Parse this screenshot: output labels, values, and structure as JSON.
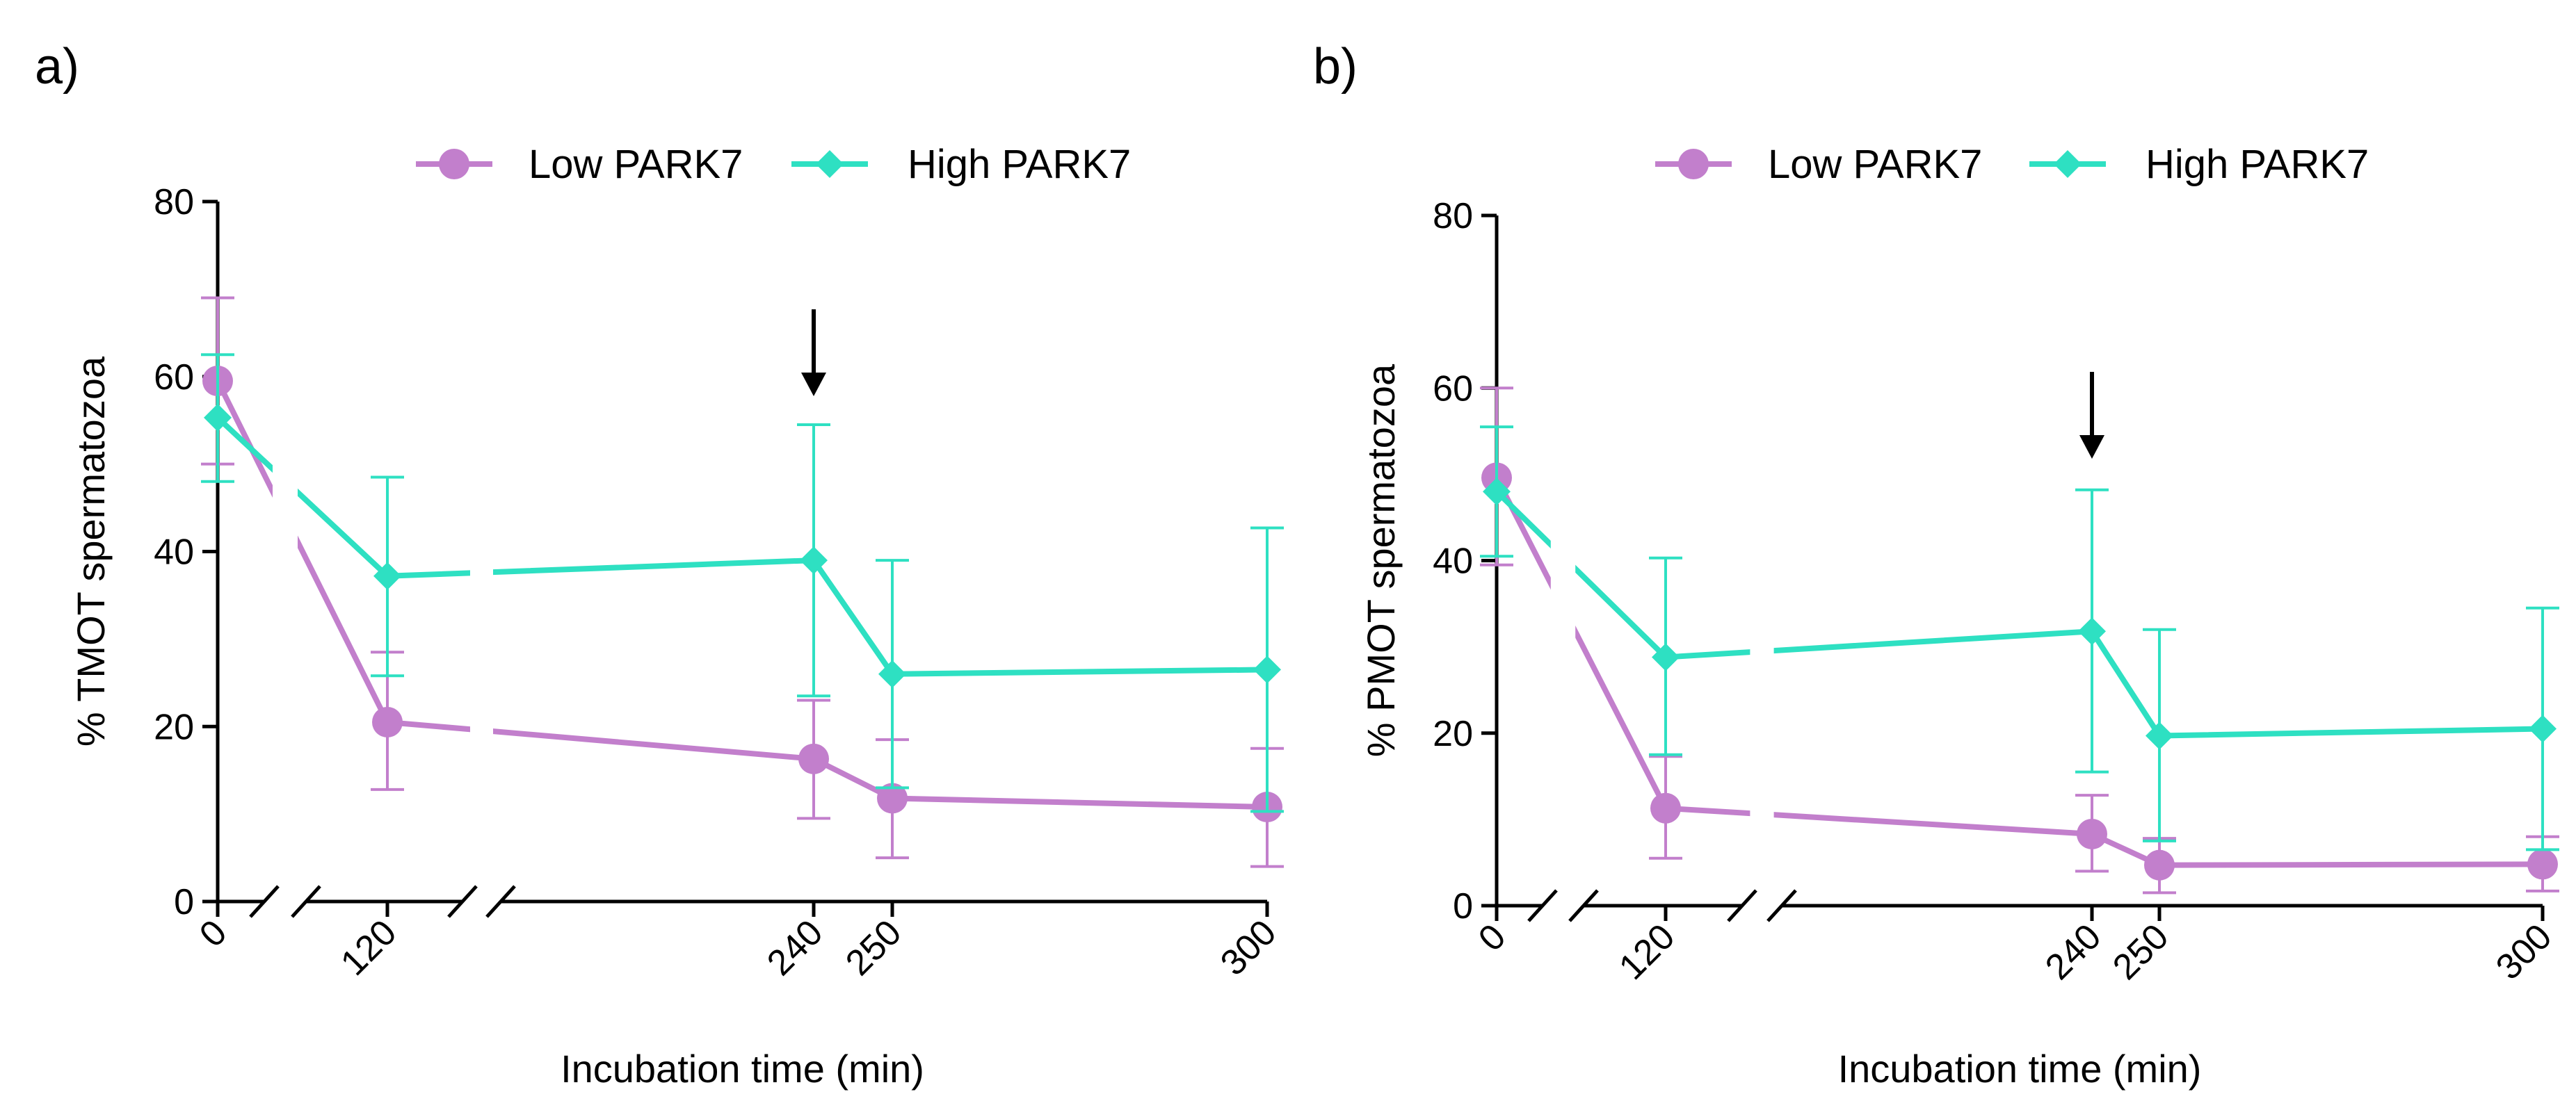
{
  "figure": {
    "colors": {
      "low": "#c27fcc",
      "high": "#2ee0c2",
      "axis": "#000000"
    }
  },
  "chart_data": [
    {
      "type": "line",
      "panel_label": "a)",
      "title": "",
      "xlabel": "Incubation time (min)",
      "ylabel": "%  TMOT spermatozoa",
      "ylim": [
        0,
        80
      ],
      "yticks": [
        0,
        20,
        40,
        60,
        80
      ],
      "xticks": [
        0,
        120,
        240,
        250,
        300
      ],
      "grid": false,
      "legend_position": "top-center",
      "broken_x_axis": true,
      "annotation": {
        "type": "arrow",
        "x": 240,
        "symbol": "↓"
      },
      "series": [
        {
          "name": "Low PARK7",
          "marker": "circle",
          "color": "#c27fcc",
          "points": [
            {
              "x": 0,
              "y": 59.5,
              "lo": 50.0,
              "hi": 69.0
            },
            {
              "x": 120,
              "y": 20.5,
              "lo": 12.8,
              "hi": 28.5
            },
            {
              "x": 240,
              "y": 16.3,
              "lo": 9.5,
              "hi": 23.0
            },
            {
              "x": 250,
              "y": 11.8,
              "lo": 5.0,
              "hi": 18.5
            },
            {
              "x": 300,
              "y": 10.8,
              "lo": 4.0,
              "hi": 17.5
            }
          ]
        },
        {
          "name": "High PARK7",
          "marker": "diamond",
          "color": "#2ee0c2",
          "points": [
            {
              "x": 0,
              "y": 55.3,
              "lo": 48.0,
              "hi": 62.5
            },
            {
              "x": 120,
              "y": 37.2,
              "lo": 25.8,
              "hi": 48.5
            },
            {
              "x": 240,
              "y": 39.0,
              "lo": 23.5,
              "hi": 54.5
            },
            {
              "x": 250,
              "y": 26.0,
              "lo": 13.0,
              "hi": 39.0
            },
            {
              "x": 300,
              "y": 26.5,
              "lo": 10.3,
              "hi": 42.7
            }
          ]
        }
      ]
    },
    {
      "type": "line",
      "panel_label": "b)",
      "title": "",
      "xlabel": "Incubation time (min)",
      "ylabel": "% PMOT spermatozoa",
      "ylim": [
        0,
        80
      ],
      "yticks": [
        0,
        20,
        40,
        60,
        80
      ],
      "xticks": [
        0,
        120,
        240,
        250,
        300
      ],
      "grid": false,
      "legend_position": "top-center",
      "broken_x_axis": true,
      "annotation": {
        "type": "arrow",
        "x": 240,
        "symbol": "↓"
      },
      "series": [
        {
          "name": "Low PARK7",
          "marker": "circle",
          "color": "#c27fcc",
          "points": [
            {
              "x": 0,
              "y": 49.6,
              "lo": 39.5,
              "hi": 60.0
            },
            {
              "x": 120,
              "y": 11.3,
              "lo": 5.5,
              "hi": 17.3
            },
            {
              "x": 240,
              "y": 8.3,
              "lo": 4.0,
              "hi": 12.8
            },
            {
              "x": 250,
              "y": 4.7,
              "lo": 1.5,
              "hi": 7.8
            },
            {
              "x": 300,
              "y": 4.8,
              "lo": 1.7,
              "hi": 8.0
            }
          ]
        },
        {
          "name": "High PARK7",
          "marker": "diamond",
          "color": "#2ee0c2",
          "points": [
            {
              "x": 0,
              "y": 48.0,
              "lo": 40.5,
              "hi": 55.5
            },
            {
              "x": 120,
              "y": 28.8,
              "lo": 17.5,
              "hi": 40.3
            },
            {
              "x": 240,
              "y": 31.8,
              "lo": 15.5,
              "hi": 48.2
            },
            {
              "x": 250,
              "y": 19.7,
              "lo": 7.5,
              "hi": 32.0
            },
            {
              "x": 300,
              "y": 20.5,
              "lo": 6.5,
              "hi": 34.5
            }
          ]
        }
      ]
    }
  ]
}
